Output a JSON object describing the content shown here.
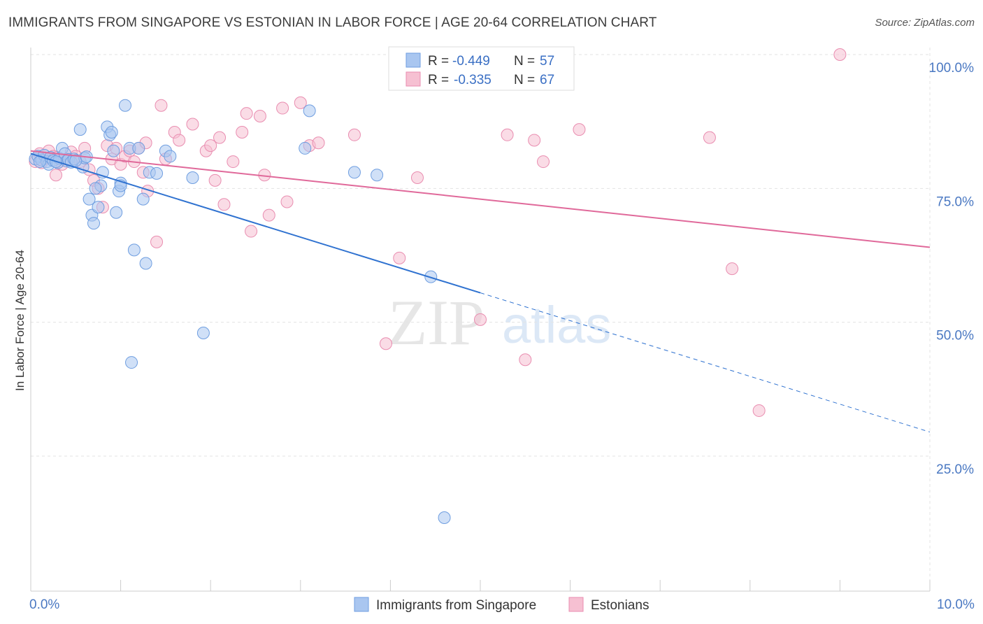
{
  "title": "IMMIGRANTS FROM SINGAPORE VS ESTONIAN IN LABOR FORCE | AGE 20-64 CORRELATION CHART",
  "source": "Source: ZipAtlas.com",
  "watermark": {
    "zip": "ZIP",
    "atlas": "atlas"
  },
  "colors": {
    "blue_fill": "#a9c6f0",
    "blue_stroke": "#6f9ee0",
    "blue_line": "#2f72d0",
    "pink_fill": "#f6c0d2",
    "pink_stroke": "#e98db0",
    "pink_line": "#e0699a",
    "grid": "#e3e3e3",
    "tick_text": "#4a78c2"
  },
  "legend": {
    "rows": [
      {
        "r_label": "R = ",
        "r_value": "-0.449",
        "n_label": "N = ",
        "n_value": "57"
      },
      {
        "r_label": "R = ",
        "r_value": "-0.335",
        "n_label": "N = ",
        "n_value": "67"
      }
    ]
  },
  "chart_data": {
    "type": "scatter",
    "title": "IMMIGRANTS FROM SINGAPORE VS ESTONIAN IN LABOR FORCE | AGE 20-64 CORRELATION CHART",
    "xlabel": "",
    "ylabel": "In Labor Force | Age 20-64",
    "xlim": [
      0,
      10
    ],
    "ylim": [
      0,
      105
    ],
    "x_tick_labels": [
      "0.0%",
      "10.0%"
    ],
    "y_ticks": [
      25,
      50,
      75,
      100
    ],
    "y_tick_labels": [
      "25.0%",
      "50.0%",
      "75.0%",
      "100.0%"
    ],
    "grid": true,
    "legend_placement": "top-center",
    "series": [
      {
        "name": "Immigrants from Singapore",
        "color": "#a9c6f0",
        "r": -0.449,
        "n": 57,
        "trend": {
          "x0": 0.0,
          "y0": 81.5,
          "x1": 10.0,
          "y1": 29.5,
          "solid_until": 5.0
        },
        "points": [
          [
            0.05,
            80.5
          ],
          [
            0.08,
            81.0
          ],
          [
            0.12,
            80.3
          ],
          [
            0.15,
            81.2
          ],
          [
            0.18,
            80.0
          ],
          [
            0.2,
            79.5
          ],
          [
            0.22,
            80.8
          ],
          [
            0.25,
            80.2
          ],
          [
            0.3,
            79.8
          ],
          [
            0.32,
            80.6
          ],
          [
            0.35,
            82.5
          ],
          [
            0.38,
            81.5
          ],
          [
            0.4,
            80.1
          ],
          [
            0.42,
            80.4
          ],
          [
            0.45,
            79.9
          ],
          [
            0.48,
            80.5
          ],
          [
            0.55,
            86.0
          ],
          [
            0.58,
            79.0
          ],
          [
            0.6,
            80.7
          ],
          [
            0.65,
            73.0
          ],
          [
            0.68,
            70.0
          ],
          [
            0.7,
            68.5
          ],
          [
            0.75,
            71.5
          ],
          [
            0.78,
            75.5
          ],
          [
            0.8,
            78.0
          ],
          [
            0.85,
            86.5
          ],
          [
            0.88,
            85.0
          ],
          [
            0.9,
            85.5
          ],
          [
            0.95,
            70.5
          ],
          [
            0.98,
            74.5
          ],
          [
            1.0,
            76.0
          ],
          [
            1.05,
            90.5
          ],
          [
            1.1,
            82.5
          ],
          [
            1.12,
            42.5
          ],
          [
            1.15,
            63.5
          ],
          [
            1.2,
            82.5
          ],
          [
            1.25,
            73.0
          ],
          [
            1.28,
            61.0
          ],
          [
            1.32,
            78.0
          ],
          [
            1.4,
            77.8
          ],
          [
            1.5,
            82.0
          ],
          [
            1.55,
            81.0
          ],
          [
            1.8,
            77.0
          ],
          [
            1.92,
            48.0
          ],
          [
            3.05,
            82.5
          ],
          [
            3.1,
            89.5
          ],
          [
            3.6,
            78.0
          ],
          [
            3.85,
            77.5
          ],
          [
            4.45,
            58.5
          ],
          [
            4.6,
            13.5
          ],
          [
            0.1,
            80.0
          ],
          [
            0.28,
            80.0
          ],
          [
            0.5,
            80.2
          ],
          [
            0.62,
            80.9
          ],
          [
            0.72,
            75.0
          ],
          [
            0.92,
            82.0
          ],
          [
            1.0,
            75.5
          ]
        ]
      },
      {
        "name": "Estonians",
        "color": "#f6c0d2",
        "r": -0.335,
        "n": 67,
        "trend": {
          "x0": 0.0,
          "y0": 82.0,
          "x1": 10.0,
          "y1": 64.0
        },
        "points": [
          [
            0.05,
            80.0
          ],
          [
            0.1,
            81.5
          ],
          [
            0.15,
            80.5
          ],
          [
            0.2,
            82.0
          ],
          [
            0.25,
            81.0
          ],
          [
            0.28,
            77.5
          ],
          [
            0.32,
            80.0
          ],
          [
            0.35,
            79.5
          ],
          [
            0.4,
            80.5
          ],
          [
            0.45,
            81.8
          ],
          [
            0.5,
            81.0
          ],
          [
            0.55,
            80.0
          ],
          [
            0.6,
            82.5
          ],
          [
            0.65,
            78.5
          ],
          [
            0.7,
            76.5
          ],
          [
            0.75,
            75.0
          ],
          [
            0.8,
            71.5
          ],
          [
            0.85,
            83.0
          ],
          [
            0.9,
            80.5
          ],
          [
            0.95,
            82.5
          ],
          [
            1.0,
            79.5
          ],
          [
            1.05,
            81.0
          ],
          [
            1.1,
            82.0
          ],
          [
            1.15,
            80.0
          ],
          [
            1.2,
            82.5
          ],
          [
            1.25,
            78.0
          ],
          [
            1.28,
            83.5
          ],
          [
            1.3,
            74.5
          ],
          [
            1.4,
            65.0
          ],
          [
            1.45,
            90.5
          ],
          [
            1.5,
            80.5
          ],
          [
            1.6,
            85.5
          ],
          [
            1.65,
            84.0
          ],
          [
            1.8,
            87.0
          ],
          [
            1.95,
            82.0
          ],
          [
            2.0,
            83.0
          ],
          [
            2.05,
            76.5
          ],
          [
            2.1,
            84.5
          ],
          [
            2.15,
            72.0
          ],
          [
            2.25,
            80.0
          ],
          [
            2.35,
            85.5
          ],
          [
            2.4,
            89.0
          ],
          [
            2.45,
            67.0
          ],
          [
            2.55,
            88.5
          ],
          [
            2.6,
            77.5
          ],
          [
            2.65,
            70.0
          ],
          [
            2.8,
            90.0
          ],
          [
            2.85,
            72.5
          ],
          [
            3.0,
            91.0
          ],
          [
            3.1,
            83.0
          ],
          [
            3.2,
            83.5
          ],
          [
            3.6,
            85.0
          ],
          [
            3.95,
            46.0
          ],
          [
            4.1,
            62.0
          ],
          [
            4.3,
            77.0
          ],
          [
            5.0,
            50.5
          ],
          [
            5.3,
            85.0
          ],
          [
            5.5,
            43.0
          ],
          [
            5.6,
            84.0
          ],
          [
            5.7,
            80.0
          ],
          [
            6.1,
            86.0
          ],
          [
            7.55,
            84.5
          ],
          [
            7.8,
            60.0
          ],
          [
            8.1,
            33.5
          ],
          [
            9.0,
            100.0
          ],
          [
            0.3,
            80.8
          ],
          [
            0.12,
            79.8
          ]
        ]
      }
    ]
  }
}
